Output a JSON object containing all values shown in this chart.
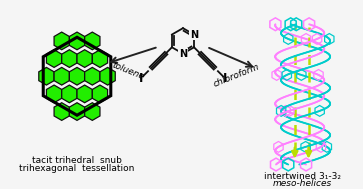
{
  "bg_color": "#f5f5f5",
  "left_label_line1": "tacit trihedral  snub",
  "left_label_line2": "trihexagonal  tessellation",
  "right_label_line1": "intertwined 3₁-3₂",
  "right_label_line2": "meso-helices",
  "toluene_label": "toluene",
  "chloroform_label": "chloroform",
  "hex_fill": "#22ee00",
  "hex_edge": "#111111",
  "rhomb_orange": "#ffaa00",
  "rhomb_red": "#cc1100",
  "rhomb_edge": "#111111",
  "helix_pink": "#ff80ff",
  "helix_cyan": "#00cccc",
  "helix_axis": "#bbdd00",
  "arrow_color": "#222222",
  "mol_color": "#111111",
  "white": "#f5f5f5"
}
